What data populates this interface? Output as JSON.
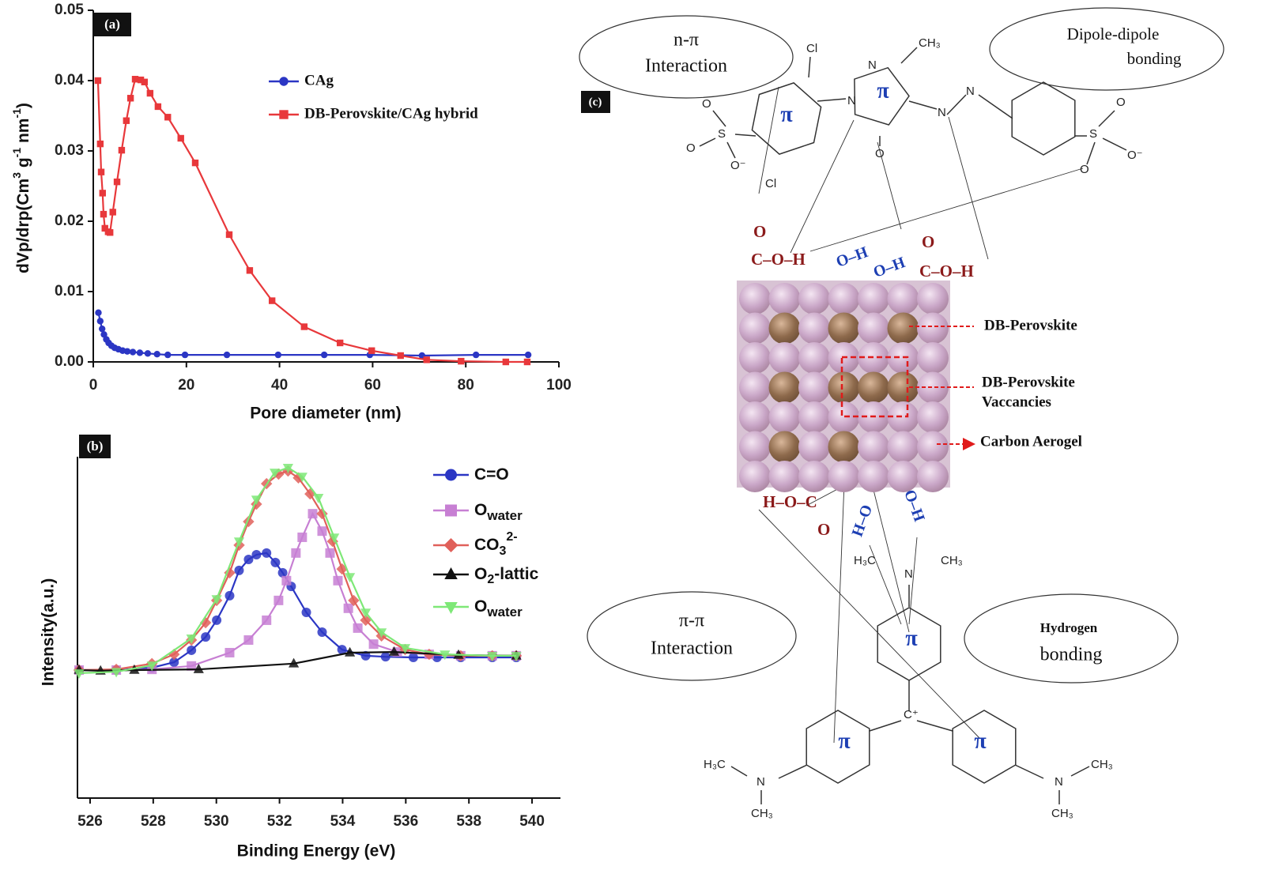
{
  "chart_data": [
    {
      "type": "line",
      "label": "(a)",
      "xlabel": "Pore diameter (nm)",
      "ylabel": [
        "dVp/drp(Cm",
        "3",
        " g",
        "-1",
        " nm",
        "-1",
        ")"
      ],
      "xlim": [
        0,
        100
      ],
      "xticks": [
        0,
        20,
        40,
        60,
        80,
        100
      ],
      "ylim": [
        0,
        0.05
      ],
      "yticks": [
        {
          "value": 0,
          "label": "0.00"
        },
        {
          "value": 0.01,
          "label": "0.01"
        },
        {
          "value": 0.02,
          "label": "0.02"
        },
        {
          "value": 0.03,
          "label": "0.03"
        },
        {
          "value": 0.04,
          "label": "0.04"
        },
        {
          "value": 0.05,
          "label": "0.05"
        }
      ],
      "legend": "upper right",
      "series": [
        {
          "name": "CAg",
          "color": "#2b36c4",
          "marker": "circle",
          "x": [
            1.1,
            1.5,
            1.9,
            2.3,
            2.8,
            3.3,
            3.9,
            4.6,
            5.4,
            6.3,
            7.3,
            8.5,
            10,
            11.7,
            13.7,
            16,
            19.7,
            28.7,
            39.7,
            49.6,
            59.4,
            70.6,
            82.2,
            93.4
          ],
          "values": [
            0.007,
            0.0058,
            0.0047,
            0.0039,
            0.0032,
            0.0027,
            0.0023,
            0.002,
            0.0018,
            0.0016,
            0.0015,
            0.0014,
            0.0013,
            0.0012,
            0.0011,
            0.001,
            0.001,
            0.001,
            0.001,
            0.001,
            0.001,
            0.0009,
            0.001,
            0.001
          ]
        },
        {
          "name": "DB-Perovskite/CAg hybrid",
          "color": "#e8383b",
          "marker": "square",
          "x": [
            1.0,
            1.5,
            1.7,
            2.0,
            2.2,
            2.5,
            3.2,
            3.6,
            4.2,
            5.1,
            6.1,
            7.1,
            8.0,
            9.0,
            10.2,
            11.0,
            12.2,
            13.9,
            16.0,
            18.8,
            21.9,
            29.2,
            33.6,
            38.4,
            45.3,
            53.0,
            59.8,
            66.0,
            71.6,
            79.0,
            88.6,
            93.2
          ],
          "values": [
            0.04,
            0.031,
            0.027,
            0.024,
            0.021,
            0.019,
            0.0185,
            0.0184,
            0.0213,
            0.0256,
            0.0301,
            0.0343,
            0.0375,
            0.0402,
            0.0401,
            0.0398,
            0.0382,
            0.0363,
            0.0348,
            0.0318,
            0.0283,
            0.0181,
            0.013,
            0.0087,
            0.005,
            0.0027,
            0.0016,
            0.0009,
            0.0003,
            0.0001,
            0,
            0
          ]
        }
      ]
    },
    {
      "type": "line",
      "label": "(b)",
      "xlabel": "Binding Energy (eV)",
      "ylabel": "Intensity(a.u.)",
      "xlim": [
        525.6,
        540.9
      ],
      "xticks": [
        526,
        528,
        530,
        532,
        534,
        536,
        538,
        540
      ],
      "ylim": [
        0,
        1
      ],
      "legend": "upper right",
      "series": [
        {
          "name": [
            "C=O"
          ],
          "color": "#2b36c4",
          "marker": "circle",
          "x": [
            525.65,
            526.83,
            527.96,
            528.66,
            529.21,
            529.66,
            530.01,
            530.42,
            530.72,
            531.02,
            531.27,
            531.59,
            531.87,
            532.1,
            532.37,
            532.85,
            533.35,
            533.98,
            534.73,
            535.36,
            536.24,
            536.99,
            537.74,
            538.74,
            539.5
          ],
          "values": [
            0.375,
            0.375,
            0.382,
            0.398,
            0.433,
            0.472,
            0.521,
            0.593,
            0.667,
            0.699,
            0.713,
            0.718,
            0.69,
            0.66,
            0.62,
            0.544,
            0.486,
            0.435,
            0.417,
            0.414,
            0.412,
            0.412,
            0.412,
            0.412,
            0.412
          ]
        },
        {
          "name": [
            "O",
            "water"
          ],
          "color": "#c77fd3",
          "marker": "square",
          "x": [
            525.65,
            526.83,
            527.96,
            529.21,
            530.42,
            531.02,
            531.59,
            531.97,
            532.22,
            532.52,
            532.72,
            533.05,
            533.35,
            533.6,
            533.85,
            534.18,
            534.48,
            534.98,
            535.73,
            536.74,
            537.74,
            538.74,
            539.5
          ],
          "values": [
            0.375,
            0.375,
            0.377,
            0.387,
            0.426,
            0.463,
            0.521,
            0.579,
            0.637,
            0.718,
            0.764,
            0.833,
            0.782,
            0.718,
            0.637,
            0.556,
            0.498,
            0.451,
            0.428,
            0.421,
            0.417,
            0.417,
            0.417
          ]
        },
        {
          "name": [
            "CO",
            "3",
            "2-"
          ],
          "color": "#e0605a",
          "marker": "diamond",
          "x": [
            525.65,
            526.83,
            527.96,
            528.66,
            529.21,
            529.66,
            530.01,
            530.42,
            530.72,
            531.02,
            531.27,
            531.59,
            531.97,
            532.27,
            532.6,
            532.97,
            533.35,
            533.68,
            533.98,
            534.35,
            534.73,
            535.23,
            535.98,
            536.74,
            537.74,
            538.74,
            539.5
          ],
          "values": [
            0.375,
            0.377,
            0.394,
            0.421,
            0.463,
            0.514,
            0.579,
            0.66,
            0.741,
            0.81,
            0.861,
            0.921,
            0.949,
            0.958,
            0.938,
            0.891,
            0.833,
            0.752,
            0.671,
            0.579,
            0.521,
            0.475,
            0.435,
            0.421,
            0.417,
            0.417,
            0.417
          ]
        },
        {
          "name": [
            "O",
            "2",
            "-lattic"
          ],
          "color": "#111111",
          "marker": "triangle",
          "x": [
            525.65,
            526.33,
            527.4,
            529.44,
            532.45,
            534.23,
            535.63,
            537.67,
            539.5
          ],
          "values": [
            0.375,
            0.373,
            0.375,
            0.377,
            0.394,
            0.426,
            0.428,
            0.419,
            0.417
          ]
        },
        {
          "name": [
            "O",
            "water"
          ],
          "color": "#7ee877",
          "marker": "triangle-down",
          "x": [
            525.65,
            526.83,
            527.96,
            529.21,
            530.01,
            530.72,
            531.27,
            531.85,
            532.27,
            532.72,
            533.23,
            533.73,
            534.23,
            534.73,
            535.23,
            535.98,
            537.24,
            538.74,
            539.5
          ],
          "values": [
            0.366,
            0.37,
            0.389,
            0.468,
            0.583,
            0.752,
            0.875,
            0.954,
            0.968,
            0.942,
            0.88,
            0.764,
            0.648,
            0.544,
            0.486,
            0.44,
            0.421,
            0.417,
            0.417
          ]
        }
      ]
    }
  ],
  "diagram": {
    "label": "(c)",
    "interactions": [
      [
        "n-π",
        "Interaction"
      ],
      [
        "Dipole-dipole",
        "bonding"
      ],
      [
        "π-π",
        "Interaction"
      ],
      [
        "Hydrogen",
        "bonding"
      ]
    ],
    "legend": [
      [
        "DB-Perovskite"
      ],
      [
        "DB-Perovskite",
        "Vaccancies"
      ],
      [
        "Carbon Aerogel"
      ]
    ],
    "pi": [
      "π",
      "π",
      "π",
      "π",
      "π"
    ],
    "atoms": [
      "Cl",
      "N",
      "CH₃",
      "N",
      "N",
      "N",
      "O",
      "S",
      "O",
      "O",
      "O⁻",
      "S",
      "O",
      "O",
      "O⁻",
      "Cl",
      "O",
      "C–O–H",
      "O–H",
      "O–H",
      "O",
      "C–O–H",
      "H–O–C",
      "O",
      "H–O",
      "O–H",
      "H₃C",
      "N",
      "CH₃",
      "C⁺",
      "H₃C",
      "N",
      "CH₃",
      "N",
      "CH₃",
      "CH₃"
    ]
  }
}
